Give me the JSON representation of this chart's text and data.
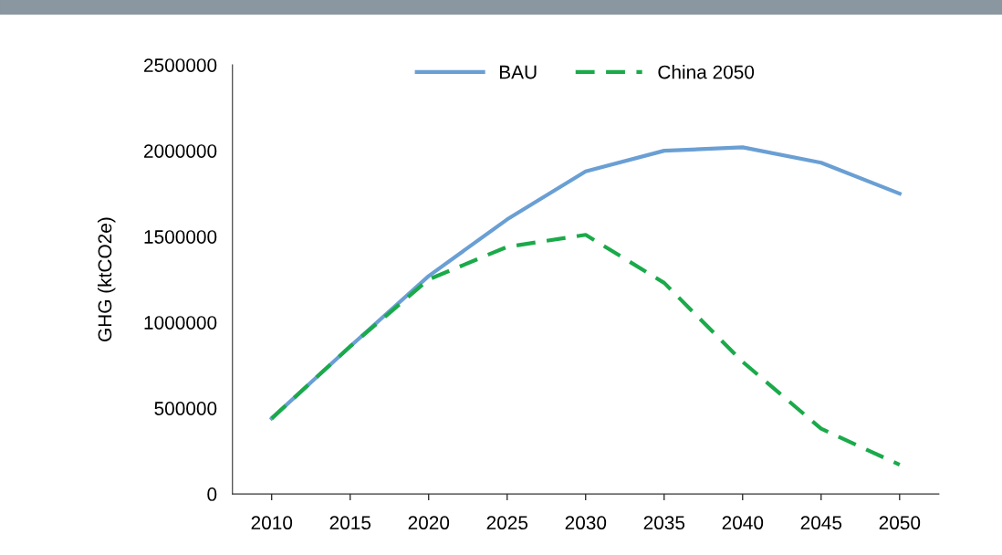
{
  "chart_data": {
    "type": "line",
    "ylabel": "GHG (ktCO2e)",
    "categories": [
      "2010",
      "2015",
      "2020",
      "2025",
      "2030",
      "2035",
      "2040",
      "2045",
      "2050"
    ],
    "series": [
      {
        "name": "BAU",
        "color": "#6a9fd4",
        "line_style": "solid",
        "values": [
          440000,
          860000,
          1270000,
          1600000,
          1880000,
          2000000,
          2020000,
          1930000,
          1750000
        ]
      },
      {
        "name": "China 2050",
        "color": "#1aaa4a",
        "line_style": "dashed",
        "values": [
          440000,
          860000,
          1250000,
          1440000,
          1510000,
          1230000,
          770000,
          380000,
          170000
        ]
      }
    ],
    "ylim": [
      0,
      2500000
    ],
    "yticks": [
      0,
      500000,
      1000000,
      1500000,
      2000000,
      2500000
    ],
    "grid": false,
    "legend": "top",
    "marker": "none"
  }
}
